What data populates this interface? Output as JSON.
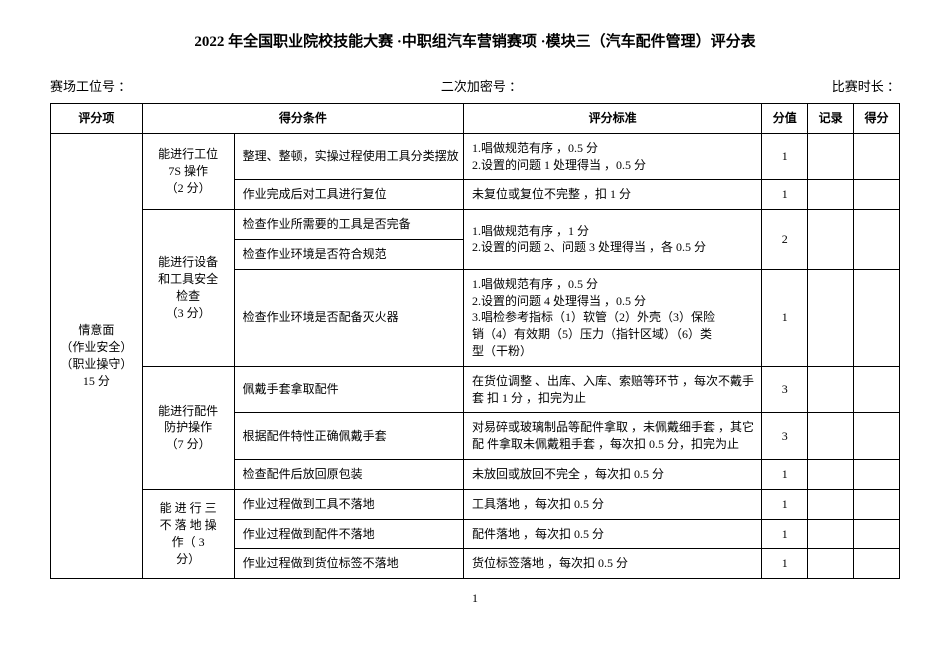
{
  "title": "2022 年全国职业院校技能大赛 ·中职组汽车营销赛项 ·模块三（汽车配件管理）评分表",
  "header": {
    "left": "赛场工位号 ：",
    "mid": "二次加密号 ：",
    "right": "比赛时长 ："
  },
  "columns": {
    "c1": "评分项",
    "c2": "得分条件",
    "c3": "评分标准",
    "c4": "分值",
    "c5": "记录",
    "c6": "得分"
  },
  "cat1": "情意面\n（作业安全）\n（职业操守）\n15 分",
  "sub1": "能进行工位\n7S 操作\n（2 分）",
  "sub2": "能进行设备\n和工具安全\n检查\n（3 分）",
  "sub3": "能进行配件\n防护操作\n（7 分）",
  "sub4": "能 进 行 三\n不 落 地 操\n作（ 3\n分）",
  "rows": [
    {
      "cond": "整理、整顿，实操过程使用工具分类摆放",
      "std": "1.唱做规范有序 ，0.5 分\n2.设置的问题 1 处理得当 ，0.5 分",
      "score": "1"
    },
    {
      "cond": "作业完成后对工具进行复位",
      "std": "未复位或复位不完整 ，扣 1 分",
      "score": "1"
    },
    {
      "cond": "检查作业所需要的工具是否完备",
      "std": "",
      "score": ""
    },
    {
      "cond": "检查作业环境是否符合规范",
      "std": "1.唱做规范有序 ，1 分\n2.设置的问题 2、问题 3 处理得当 ，各 0.5 分",
      "score": "2"
    },
    {
      "cond": "检查作业环境是否配备灭火器",
      "std": "1.唱做规范有序 ，0.5 分\n2.设置的问题 4 处理得当 ，0.5 分\n3.唱检参考指标（1）软管（2）外壳（3）保险\n销（4）有效期（5）压力（指针区域）（6）类\n型（干粉）",
      "score": "1"
    },
    {
      "cond": "佩戴手套拿取配件",
      "std": "在货位调整 、出库、入库、索赔等环节 ，每次不戴手\n套 扣 1 分 ，扣完为止",
      "score": "3"
    },
    {
      "cond": "根据配件特性正确佩戴手套",
      "std": "对易碎或玻璃制品等配件拿取 ，未佩戴细手套 ，其它\n配 件拿取未佩戴粗手套 ，每次扣 0.5 分，扣完为止",
      "score": "3"
    },
    {
      "cond": "检查配件后放回原包装",
      "std": "未放回或放回不完全 ，每次扣 0.5 分",
      "score": "1"
    },
    {
      "cond": "作业过程做到工具不落地",
      "std": "工具落地 ，每次扣 0.5 分",
      "score": "1"
    },
    {
      "cond": "作业过程做到配件不落地",
      "std": "配件落地 ，每次扣 0.5 分",
      "score": "1"
    },
    {
      "cond": "作业过程做到货位标签不落地",
      "std": "货位标签落地 ，每次扣 0.5 分",
      "score": "1"
    }
  ],
  "pagenum": "1"
}
